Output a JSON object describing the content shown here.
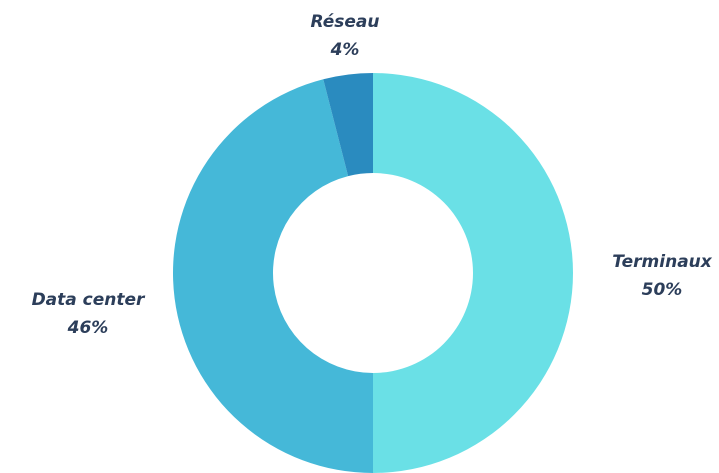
{
  "chart_data": {
    "type": "donut",
    "categories": [
      "Terminaux",
      "Data center",
      "Réseau"
    ],
    "values": [
      50,
      46,
      4
    ],
    "value_labels": [
      "50%",
      "46%",
      "4%"
    ],
    "colors": [
      "#6ae0e6",
      "#45b8d8",
      "#2a8bbf"
    ]
  }
}
